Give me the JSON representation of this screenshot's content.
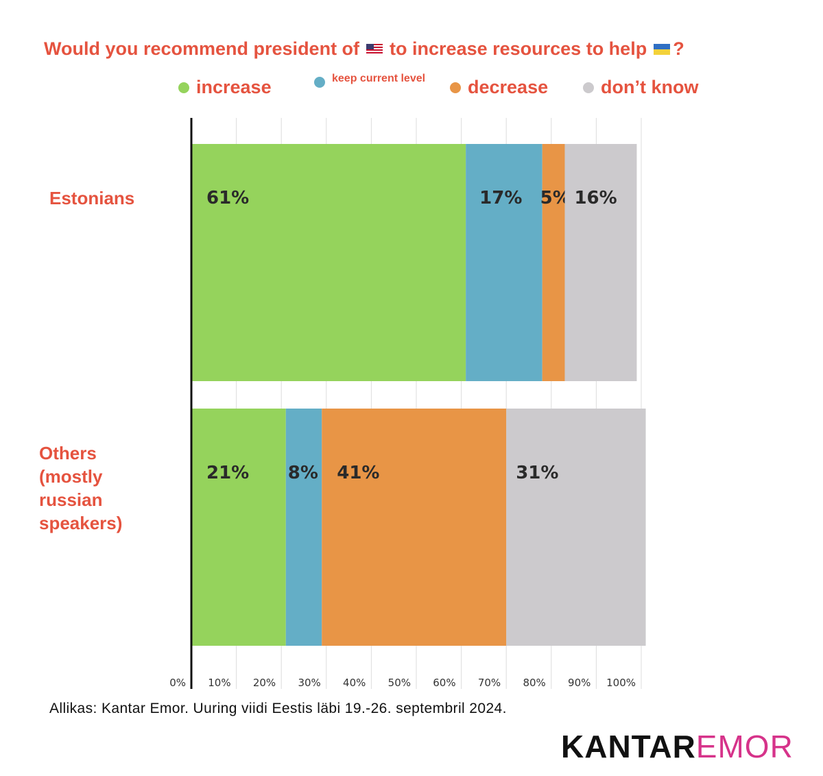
{
  "title": {
    "part1": "Would you recommend president of",
    "part2": "to increase resources to help",
    "part3": "?",
    "flag_left": "us-flag-icon",
    "flag_right": "ukraine-flag-icon"
  },
  "colors": {
    "increase": "#95d35c",
    "keep": "#64aec6",
    "decrease": "#e89546",
    "dontknow": "#cccacd",
    "text_accent": "#e5533f",
    "brand_pink": "#d6338a"
  },
  "chart_data": {
    "type": "bar",
    "orientation": "horizontal",
    "stacked": true,
    "title": "Would you recommend president of 🇺🇸 to increase resources to help 🇺🇦?",
    "categories": [
      "Estonians",
      "Others (mostly russian speakers)"
    ],
    "category_lines": [
      [
        "Estonians"
      ],
      [
        "Others",
        "(mostly",
        "russian",
        "speakers)"
      ]
    ],
    "series": [
      {
        "name": "increase",
        "values": [
          61,
          21
        ],
        "labels": [
          "61%",
          "21%"
        ]
      },
      {
        "name": "keep current level",
        "values": [
          17,
          8
        ],
        "labels": [
          "17%",
          "8%"
        ]
      },
      {
        "name": "decrease",
        "values": [
          5,
          41
        ],
        "labels": [
          "5%",
          "41%"
        ]
      },
      {
        "name": "don’t know",
        "values": [
          16,
          31
        ],
        "labels": [
          "16%",
          "31%"
        ]
      }
    ],
    "xlim": [
      0,
      100
    ],
    "x_ticks": [
      "0%",
      "10%",
      "20%",
      "30%",
      "40%",
      "50%",
      "60%",
      "70%",
      "80%",
      "90%",
      "100%"
    ],
    "grid": true,
    "legend_position": "top"
  },
  "source": "Allikas: Kantar Emor. Uuring viidi Eestis läbi 19.-26. septembril 2024.",
  "brand": {
    "part1": "KANTAR",
    "part2": "EMOR"
  }
}
